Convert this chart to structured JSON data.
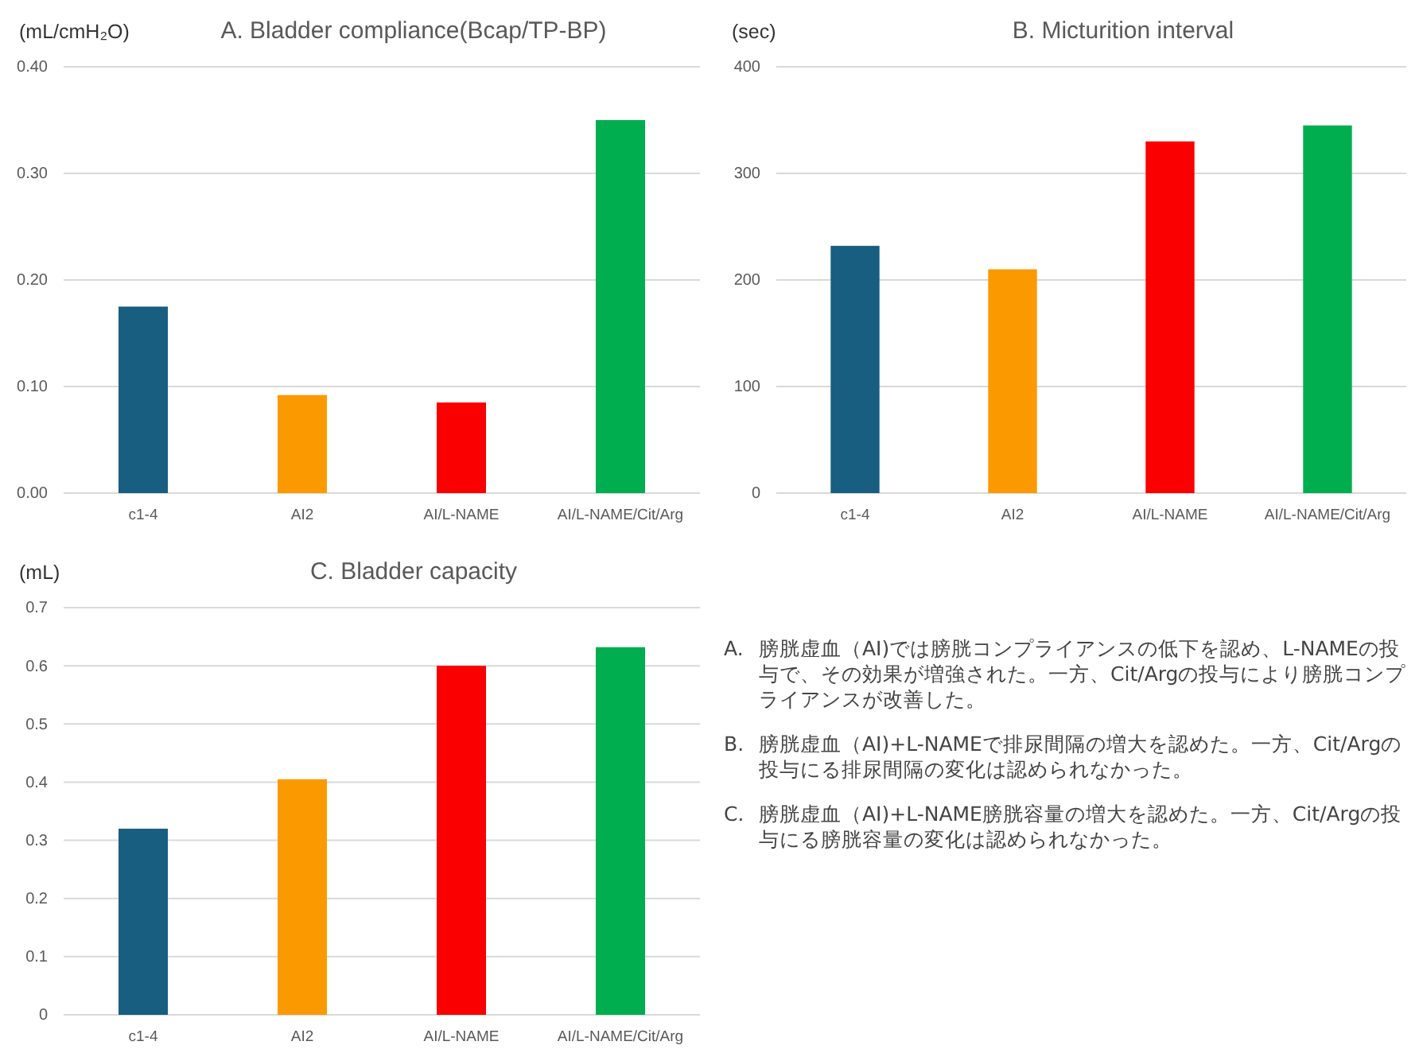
{
  "chart_data": [
    {
      "type": "bar",
      "title": "A. Bladder compliance(Bcap/TP-BP)",
      "ylabel": "(mL/cmH₂O)",
      "categories": [
        "c1-4",
        "AI2",
        "AI/L-NAME",
        "AI/L-NAME/Cit/Arg"
      ],
      "values": [
        0.175,
        0.092,
        0.085,
        0.35
      ],
      "colors": [
        "#175e80",
        "#fb9a00",
        "#fb0000",
        "#00ae4f"
      ],
      "ylim": [
        0,
        0.4
      ],
      "yticks": [
        {
          "value": 0,
          "label": "0.00"
        },
        {
          "value": 0.1,
          "label": "0.10"
        },
        {
          "value": 0.2,
          "label": "0.20"
        },
        {
          "value": 0.3,
          "label": "0.30"
        },
        {
          "value": 0.4,
          "label": "0.40"
        }
      ],
      "grid": "y"
    },
    {
      "type": "bar",
      "title": "B. Micturition interval",
      "ylabel": "(sec)",
      "categories": [
        "c1-4",
        "AI2",
        "AI/L-NAME",
        "AI/L-NAME/Cit/Arg"
      ],
      "values": [
        232,
        210,
        330,
        345
      ],
      "colors": [
        "#175e80",
        "#fb9a00",
        "#fb0000",
        "#00ae4f"
      ],
      "ylim": [
        0,
        400
      ],
      "yticks": [
        0,
        100,
        200,
        300,
        400
      ],
      "grid": "y"
    },
    {
      "type": "bar",
      "title": "C. Bladder capacity",
      "ylabel": "(mL)",
      "categories": [
        "c1-4",
        "AI2",
        "AI/L-NAME",
        "AI/L-NAME/Cit/Arg"
      ],
      "values": [
        0.32,
        0.405,
        0.6,
        0.632
      ],
      "colors": [
        "#175e80",
        "#fb9a00",
        "#fb0000",
        "#00ae4f"
      ],
      "ylim": [
        0,
        0.7
      ],
      "yticks": [
        0,
        0.1,
        0.2,
        0.3,
        0.4,
        0.5,
        0.6,
        0.7
      ],
      "grid": "y"
    },
    {
      "type": "other",
      "annotations": [
        "A.\t膀胱虚血（AI)では膀胱コンプライアンスの低下を認め、L-NAMEの投与で、その効果が増強された。一方、Cit/Argの投与により膀胱コンプライアンスが改善した。",
        "B.\t膀胱虚血（AI)+L-NAMEで排尿間隔の増大を認めた。一方、Cit/Argの投与にる排尿間隔の変化は認められなかった。",
        "C.\t膀胱虚血（AI)+L-NAME膀胱容量の増大を認めた。一方、Cit/Argの投与にる膀胱容量の変化は認められなかった。"
      ]
    }
  ]
}
